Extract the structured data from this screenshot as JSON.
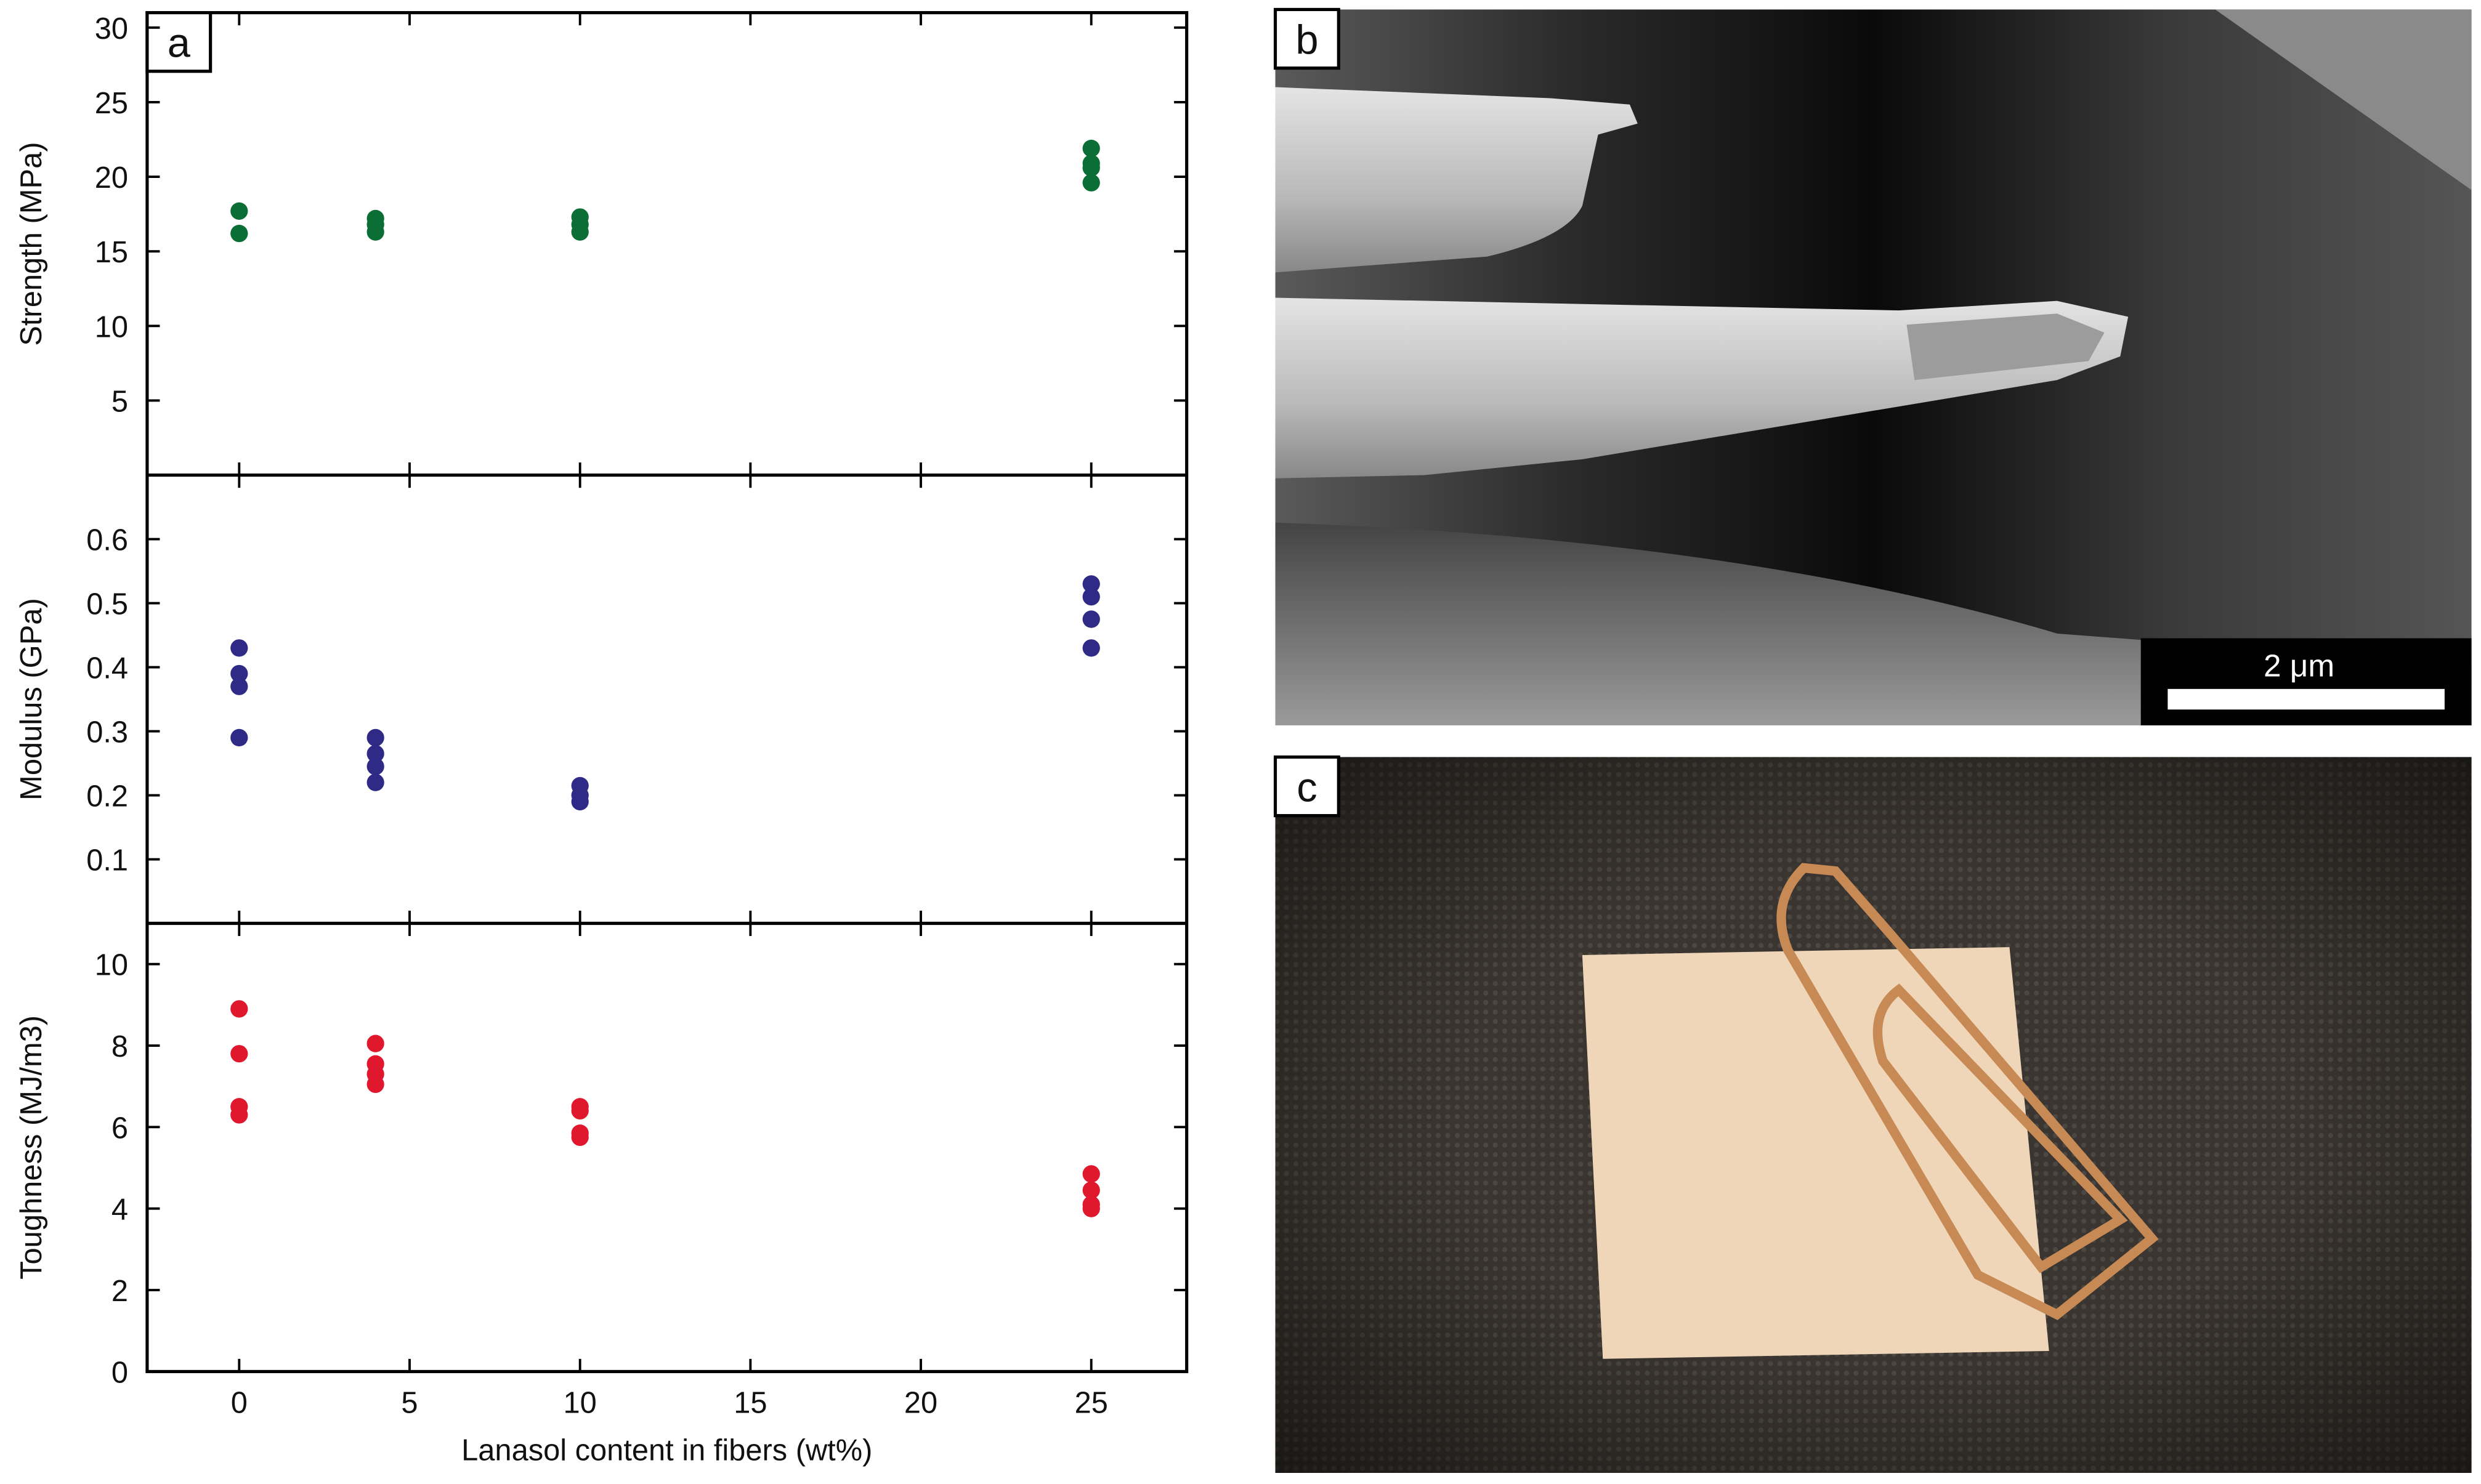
{
  "panel_labels": [
    "a",
    "b",
    "c"
  ],
  "scale_bar": "2 μm",
  "chart_data": [
    {
      "type": "scatter",
      "y_label": "Strength (MPa)",
      "color": "#0b6e35",
      "x": [
        0,
        0,
        4,
        4,
        4,
        10,
        10,
        10,
        25,
        25,
        25,
        25
      ],
      "values": [
        17.7,
        16.2,
        17.2,
        16.8,
        16.3,
        17.3,
        16.8,
        16.3,
        21.9,
        20.9,
        20.6,
        19.6
      ],
      "xlim": [
        -2.7,
        27.8
      ],
      "ylim": [
        0,
        31
      ],
      "yticks": [
        5,
        10,
        15,
        20,
        25,
        30
      ]
    },
    {
      "type": "scatter",
      "y_label": "Modulus (GPa)",
      "color": "#2e2a85",
      "x": [
        0,
        0,
        0,
        0,
        4,
        4,
        4,
        4,
        10,
        10,
        10,
        25,
        25,
        25,
        25
      ],
      "values": [
        0.43,
        0.39,
        0.37,
        0.29,
        0.29,
        0.265,
        0.245,
        0.22,
        0.215,
        0.2,
        0.19,
        0.53,
        0.51,
        0.475,
        0.43
      ],
      "xlim": [
        -2.7,
        27.8
      ],
      "ylim": [
        0,
        0.7
      ],
      "yticks": [
        0.1,
        0.2,
        0.3,
        0.4,
        0.5,
        0.6
      ]
    },
    {
      "type": "scatter",
      "y_label": "Toughness (MJ/m3)",
      "x_label": "Lanasol content in fibers (wt%)",
      "color": "#e0182d",
      "x": [
        0,
        0,
        0,
        0,
        4,
        4,
        4,
        4,
        10,
        10,
        10,
        10,
        25,
        25,
        25,
        25
      ],
      "values": [
        8.9,
        7.8,
        6.5,
        6.3,
        8.05,
        7.55,
        7.3,
        7.05,
        6.5,
        6.4,
        5.85,
        5.75,
        4.85,
        4.45,
        4.1,
        4.0
      ],
      "xlim": [
        -2.7,
        27.8
      ],
      "ylim": [
        0,
        11
      ],
      "yticks": [
        0,
        2,
        4,
        6,
        8,
        10
      ],
      "xticks": [
        0,
        5,
        10,
        15,
        20,
        25
      ]
    }
  ]
}
